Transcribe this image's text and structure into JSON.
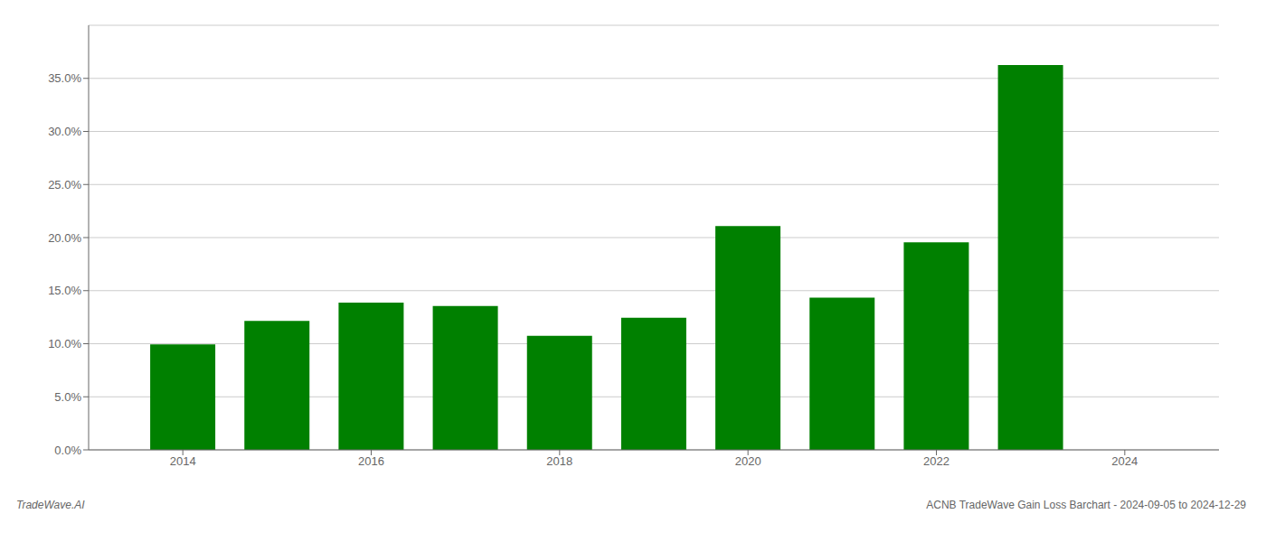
{
  "chart_data": {
    "type": "bar",
    "x": [
      2014,
      2015,
      2016,
      2017,
      2018,
      2019,
      2020,
      2021,
      2022,
      2023
    ],
    "values": [
      0.0993,
      0.1215,
      0.1388,
      0.1355,
      0.1075,
      0.1245,
      0.2108,
      0.1435,
      0.1955,
      0.3625
    ],
    "color": "#008000",
    "xlim": [
      2013,
      2025
    ],
    "xticks": [
      2014,
      2016,
      2018,
      2020,
      2022,
      2024
    ],
    "ylim": [
      0,
      0.4
    ],
    "yticks": [
      {
        "value": 0,
        "label": "0.0%"
      },
      {
        "value": 0.05,
        "label": "5.0%"
      },
      {
        "value": 0.1,
        "label": "10.0%"
      },
      {
        "value": 0.15,
        "label": "15.0%"
      },
      {
        "value": 0.2,
        "label": "20.0%"
      },
      {
        "value": 0.25,
        "label": "25.0%"
      },
      {
        "value": 0.3,
        "label": "30.0%"
      },
      {
        "value": 0.35,
        "label": "35.0%"
      }
    ],
    "grid": true,
    "annotations": [
      "TradeWave.AI",
      "ACNB TradeWave Gain Loss Barchart - 2024-09-05 to 2024-12-29"
    ]
  }
}
